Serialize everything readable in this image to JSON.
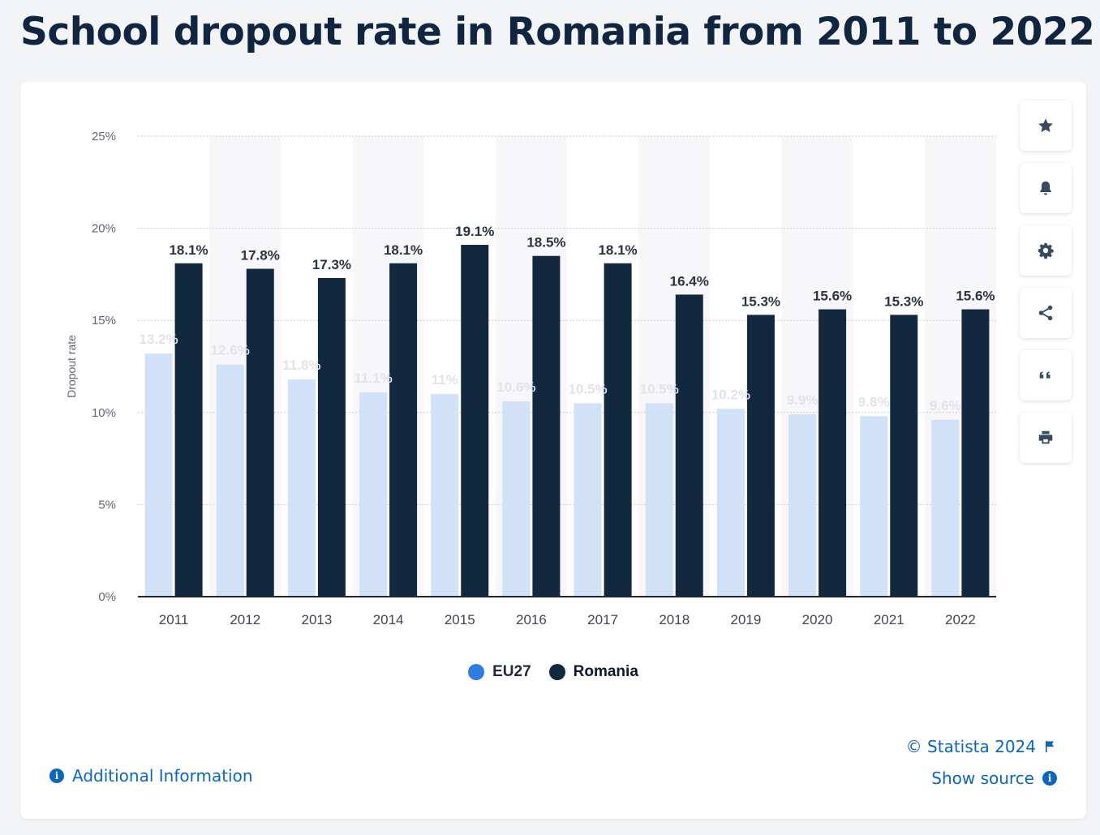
{
  "page": {
    "title": "School dropout rate in Romania from 2011 to 2022"
  },
  "chart_data": {
    "type": "bar",
    "categories": [
      "2011",
      "2012",
      "2013",
      "2014",
      "2015",
      "2016",
      "2017",
      "2018",
      "2019",
      "2020",
      "2021",
      "2022"
    ],
    "series": [
      {
        "name": "EU27",
        "values": [
          13.2,
          12.6,
          11.8,
          11.1,
          11,
          10.6,
          10.5,
          10.5,
          10.2,
          9.9,
          9.8,
          9.6
        ],
        "labels": [
          "13.2%",
          "12.6%",
          "11.8%",
          "11.1%",
          "11%",
          "10.6%",
          "10.5%",
          "10.5%",
          "10.2%",
          "9.9%",
          "9.8%",
          "9.6%"
        ]
      },
      {
        "name": "Romania",
        "values": [
          18.1,
          17.8,
          17.3,
          18.1,
          19.1,
          18.5,
          18.1,
          16.4,
          15.3,
          15.6,
          15.3,
          15.6
        ],
        "labels": [
          "18.1%",
          "17.8%",
          "17.3%",
          "18.1%",
          "19.1%",
          "18.5%",
          "18.1%",
          "16.4%",
          "15.3%",
          "15.6%",
          "15.3%",
          "15.6%"
        ]
      }
    ],
    "ylabel": "Dropout rate",
    "ylim": [
      0,
      25
    ],
    "yticks": [
      "0%",
      "5%",
      "10%",
      "15%",
      "20%",
      "25%"
    ],
    "grid": true,
    "legend_position": "bottom-center",
    "colors": {
      "EU27": "#d1e1f7",
      "Romania": "#12283f",
      "legend_EU27": "#2f7de1"
    }
  },
  "legend": {
    "items": [
      {
        "label": "EU27"
      },
      {
        "label": "Romania"
      }
    ]
  },
  "toolbar": {
    "buttons": [
      "star-icon",
      "bell-icon",
      "gear-icon",
      "share-icon",
      "quote-icon",
      "print-icon"
    ]
  },
  "footer": {
    "copyright": "© Statista 2024",
    "show_source": "Show source",
    "additional_info": "Additional Information"
  }
}
